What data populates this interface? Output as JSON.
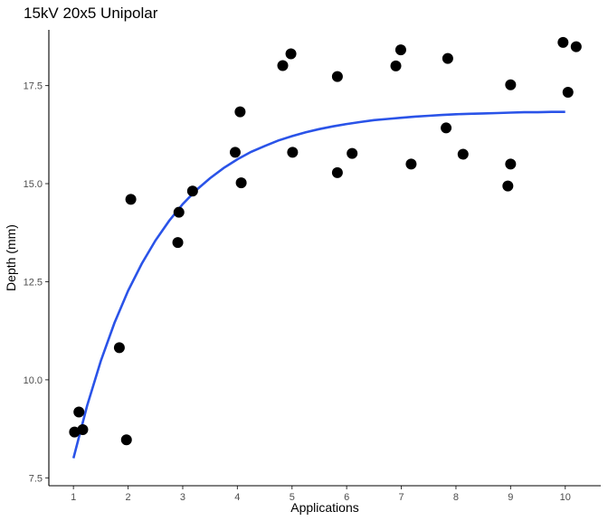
{
  "chart_data": {
    "type": "scatter",
    "title": "15kV 20x5 Unipolar",
    "xlabel": "Applications",
    "ylabel": "Depth (mm)",
    "xlim": [
      0.55,
      10.65
    ],
    "ylim": [
      7.3,
      18.92
    ],
    "x_ticks": [
      1,
      2,
      3,
      4,
      5,
      6,
      7,
      8,
      9,
      10
    ],
    "x_tick_labels": [
      "1",
      "2",
      "3",
      "4",
      "5",
      "6",
      "7",
      "8",
      "9",
      "10"
    ],
    "y_ticks": [
      7.5,
      10.0,
      12.5,
      15.0,
      17.5
    ],
    "y_tick_labels": [
      "7.5",
      "10.0",
      "12.5",
      "15.0",
      "17.5"
    ],
    "grid": false,
    "legend": "none",
    "points": [
      {
        "x": 1.02,
        "y": 8.67
      },
      {
        "x": 1.1,
        "y": 9.18
      },
      {
        "x": 1.17,
        "y": 8.73
      },
      {
        "x": 1.84,
        "y": 10.82
      },
      {
        "x": 1.97,
        "y": 8.47
      },
      {
        "x": 2.05,
        "y": 14.6
      },
      {
        "x": 2.91,
        "y": 13.5
      },
      {
        "x": 2.93,
        "y": 14.27
      },
      {
        "x": 3.18,
        "y": 14.81
      },
      {
        "x": 3.96,
        "y": 15.8
      },
      {
        "x": 4.05,
        "y": 16.83
      },
      {
        "x": 4.07,
        "y": 15.02
      },
      {
        "x": 4.83,
        "y": 18.01
      },
      {
        "x": 4.98,
        "y": 18.31
      },
      {
        "x": 5.01,
        "y": 15.8
      },
      {
        "x": 5.83,
        "y": 17.73
      },
      {
        "x": 5.83,
        "y": 15.28
      },
      {
        "x": 6.1,
        "y": 15.77
      },
      {
        "x": 6.9,
        "y": 18.0
      },
      {
        "x": 6.99,
        "y": 18.41
      },
      {
        "x": 7.18,
        "y": 15.5
      },
      {
        "x": 7.82,
        "y": 16.42
      },
      {
        "x": 7.85,
        "y": 18.19
      },
      {
        "x": 8.13,
        "y": 15.75
      },
      {
        "x": 8.95,
        "y": 14.94
      },
      {
        "x": 9.0,
        "y": 17.52
      },
      {
        "x": 9.0,
        "y": 15.5
      },
      {
        "x": 9.96,
        "y": 18.6
      },
      {
        "x": 10.05,
        "y": 17.33
      },
      {
        "x": 10.2,
        "y": 18.49
      }
    ],
    "fit": {
      "type": "exponential-saturation",
      "color": "#2a53e8",
      "x": [
        1.0,
        1.25,
        1.5,
        1.75,
        2.0,
        2.25,
        2.5,
        2.75,
        3.0,
        3.25,
        3.5,
        3.75,
        4.0,
        4.25,
        4.5,
        4.75,
        5.0,
        5.25,
        5.5,
        5.75,
        6.0,
        6.25,
        6.5,
        6.75,
        7.0,
        7.25,
        7.5,
        7.75,
        8.0,
        8.25,
        8.5,
        8.75,
        9.0,
        9.25,
        9.5,
        9.75,
        10.0
      ],
      "y": [
        8.0,
        9.34,
        10.48,
        11.45,
        12.27,
        12.96,
        13.55,
        14.05,
        14.48,
        14.84,
        15.14,
        15.4,
        15.62,
        15.81,
        15.96,
        16.1,
        16.21,
        16.31,
        16.39,
        16.46,
        16.52,
        16.57,
        16.62,
        16.65,
        16.68,
        16.71,
        16.73,
        16.75,
        16.77,
        16.78,
        16.79,
        16.8,
        16.81,
        16.82,
        16.82,
        16.83,
        16.83
      ]
    }
  }
}
